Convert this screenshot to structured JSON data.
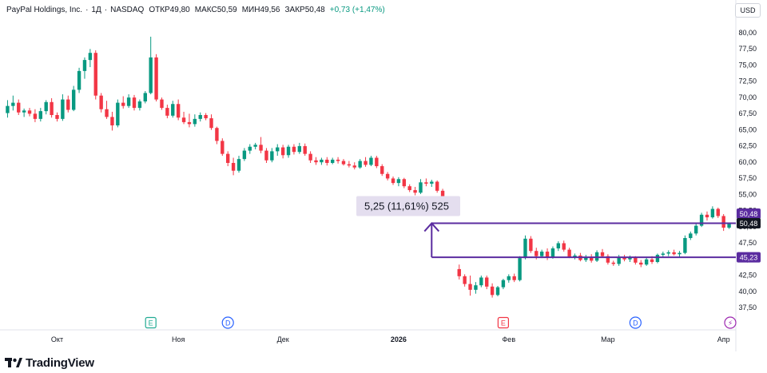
{
  "legend": {
    "name": "PayPal Holdings, Inc.",
    "interval": "1Д",
    "exchange": "NASDAQ",
    "open_label": "ОТКР",
    "open": "49,80",
    "high_label": "МАКС",
    "high": "50,59",
    "low_label": "МИН",
    "low": "49,56",
    "close_label": "ЗАКР",
    "close": "50,48",
    "change": "+0,73 (+1,47%)"
  },
  "currency": "USD",
  "brand": "TradingView",
  "colors": {
    "up": "#089981",
    "down": "#f23645",
    "drawing": "#5b2ca0",
    "measure_bg": "#e4deef",
    "price_label_bg": "#131722"
  },
  "chart_data": {
    "type": "candlestick",
    "title": "PayPal Holdings, Inc.",
    "y_axis": {
      "range": [
        35.0,
        82.5
      ],
      "ticks": [
        "37,50",
        "40,00",
        "42,50",
        "45,00",
        "47,50",
        "50,00",
        "52,50",
        "55,00",
        "57,50",
        "60,00",
        "62,50",
        "65,00",
        "67,50",
        "70,00",
        "72,50",
        "75,00",
        "77,50",
        "80,00"
      ],
      "tick_values": [
        37.5,
        40,
        42.5,
        45,
        47.5,
        50,
        52.5,
        55,
        57.5,
        60,
        62.5,
        65,
        67.5,
        70,
        72.5,
        75,
        77.5,
        80
      ]
    },
    "x_axis": {
      "labels": [
        "Окт",
        "Ноя",
        "Дек",
        "2026",
        "Фев",
        "Мар",
        "Апр"
      ],
      "label_index": [
        9,
        31,
        50,
        71,
        91,
        109,
        130
      ]
    },
    "grid": false,
    "candles": [
      [
        67.5,
        69.5,
        66.8,
        68.6
      ],
      [
        68.6,
        70.2,
        67.9,
        69.1
      ],
      [
        69.1,
        69.6,
        67.2,
        67.6
      ],
      [
        67.6,
        68.2,
        66.9,
        67.9
      ],
      [
        67.9,
        68.3,
        67.0,
        67.4
      ],
      [
        67.4,
        68.1,
        66.1,
        66.6
      ],
      [
        66.6,
        68.3,
        66.2,
        67.8
      ],
      [
        67.8,
        69.5,
        67.3,
        69.2
      ],
      [
        69.2,
        69.8,
        66.8,
        67.2
      ],
      [
        67.2,
        67.6,
        66.2,
        66.6
      ],
      [
        66.6,
        70.4,
        66.3,
        69.6
      ],
      [
        69.6,
        70.2,
        67.6,
        68.0
      ],
      [
        68.0,
        71.7,
        67.8,
        71.1
      ],
      [
        71.1,
        74.5,
        70.6,
        74.0
      ],
      [
        74.0,
        76.1,
        72.8,
        75.7
      ],
      [
        75.7,
        77.4,
        74.6,
        76.8
      ],
      [
        76.8,
        77.2,
        69.6,
        70.2
      ],
      [
        70.2,
        70.6,
        67.6,
        68.1
      ],
      [
        68.1,
        69.4,
        66.6,
        66.9
      ],
      [
        66.9,
        67.7,
        64.8,
        65.6
      ],
      [
        65.6,
        69.6,
        65.3,
        69.1
      ],
      [
        69.1,
        70.1,
        68.2,
        68.6
      ],
      [
        68.6,
        70.4,
        68.3,
        69.9
      ],
      [
        69.9,
        70.3,
        67.9,
        68.3
      ],
      [
        68.3,
        69.6,
        67.9,
        69.3
      ],
      [
        69.3,
        70.9,
        69.0,
        70.6
      ],
      [
        70.6,
        79.3,
        70.4,
        76.1
      ],
      [
        76.1,
        76.6,
        69.3,
        69.6
      ],
      [
        69.6,
        69.9,
        68.0,
        68.3
      ],
      [
        68.3,
        68.8,
        66.7,
        67.1
      ],
      [
        67.1,
        69.4,
        66.8,
        68.9
      ],
      [
        68.9,
        69.6,
        66.4,
        66.8
      ],
      [
        66.8,
        67.7,
        65.8,
        66.1
      ],
      [
        66.1,
        67.4,
        65.3,
        65.8
      ],
      [
        65.8,
        67.3,
        65.4,
        66.6
      ],
      [
        66.6,
        67.6,
        66.2,
        67.2
      ],
      [
        67.2,
        67.5,
        66.4,
        66.7
      ],
      [
        66.7,
        67.3,
        64.9,
        65.2
      ],
      [
        65.2,
        65.4,
        62.7,
        63.2
      ],
      [
        63.2,
        63.6,
        60.9,
        61.2
      ],
      [
        61.2,
        61.6,
        59.3,
        59.8
      ],
      [
        59.8,
        60.6,
        57.9,
        58.6
      ],
      [
        58.6,
        60.9,
        58.3,
        60.4
      ],
      [
        60.4,
        62.1,
        60.1,
        61.7
      ],
      [
        61.7,
        62.7,
        61.2,
        62.3
      ],
      [
        62.3,
        62.9,
        61.9,
        62.6
      ],
      [
        62.6,
        63.8,
        61.3,
        61.7
      ],
      [
        61.7,
        62.1,
        59.8,
        60.2
      ],
      [
        60.2,
        62.1,
        59.9,
        61.6
      ],
      [
        61.6,
        62.7,
        60.9,
        62.2
      ],
      [
        62.2,
        62.6,
        60.5,
        61.0
      ],
      [
        61.0,
        62.6,
        60.6,
        62.3
      ],
      [
        62.3,
        62.7,
        61.1,
        61.5
      ],
      [
        61.5,
        62.9,
        61.2,
        62.4
      ],
      [
        62.4,
        62.8,
        60.9,
        61.2
      ],
      [
        61.2,
        61.6,
        59.8,
        60.2
      ],
      [
        60.2,
        60.7,
        59.5,
        59.9
      ],
      [
        59.9,
        60.6,
        59.5,
        60.3
      ],
      [
        60.3,
        60.7,
        59.4,
        59.8
      ],
      [
        59.8,
        60.6,
        59.6,
        60.3
      ],
      [
        60.3,
        60.7,
        59.7,
        60.1
      ],
      [
        60.1,
        60.4,
        59.4,
        59.6
      ],
      [
        59.6,
        60.1,
        59.1,
        59.4
      ],
      [
        59.4,
        59.9,
        58.8,
        59.1
      ],
      [
        59.1,
        60.4,
        58.9,
        60.1
      ],
      [
        60.1,
        60.7,
        59.2,
        59.5
      ],
      [
        59.5,
        60.9,
        59.3,
        60.6
      ],
      [
        60.6,
        60.9,
        59.0,
        59.3
      ],
      [
        59.3,
        59.6,
        57.8,
        58.1
      ],
      [
        58.1,
        58.4,
        57.1,
        57.4
      ],
      [
        57.4,
        57.7,
        56.4,
        56.7
      ],
      [
        56.7,
        57.6,
        56.2,
        57.3
      ],
      [
        57.3,
        57.5,
        55.9,
        56.2
      ],
      [
        56.2,
        56.5,
        55.3,
        55.6
      ],
      [
        55.6,
        56.1,
        54.8,
        55.2
      ],
      [
        55.2,
        57.3,
        55.0,
        56.8
      ],
      [
        56.8,
        57.4,
        56.2,
        56.6
      ],
      [
        56.6,
        57.2,
        56.1,
        56.9
      ],
      [
        56.9,
        57.1,
        55.2,
        55.5
      ],
      [
        55.5,
        55.8,
        53.5,
        53.9
      ],
      [
        53.9,
        54.2,
        52.7,
        53.1
      ],
      [
        53.1,
        53.3,
        52.2,
        52.4
      ],
      [
        43.4,
        44.1,
        41.8,
        42.3
      ],
      [
        42.3,
        42.6,
        40.7,
        41.1
      ],
      [
        41.1,
        42.4,
        39.3,
        40.2
      ],
      [
        40.2,
        41.4,
        39.6,
        40.9
      ],
      [
        40.9,
        42.4,
        40.6,
        42.1
      ],
      [
        42.1,
        42.4,
        40.3,
        40.7
      ],
      [
        40.7,
        41.2,
        39.0,
        39.4
      ],
      [
        39.4,
        40.8,
        39.2,
        40.6
      ],
      [
        40.6,
        41.9,
        40.3,
        41.7
      ],
      [
        41.7,
        42.6,
        41.3,
        42.3
      ],
      [
        42.3,
        42.7,
        41.4,
        41.7
      ],
      [
        41.7,
        45.4,
        41.5,
        45.1
      ],
      [
        45.1,
        48.6,
        44.9,
        48.1
      ],
      [
        48.1,
        48.5,
        45.9,
        46.2
      ],
      [
        46.2,
        46.7,
        44.9,
        45.4
      ],
      [
        45.4,
        46.4,
        45.1,
        46.1
      ],
      [
        46.1,
        46.6,
        44.8,
        45.2
      ],
      [
        45.2,
        46.9,
        45.0,
        46.6
      ],
      [
        46.6,
        47.7,
        46.2,
        47.4
      ],
      [
        47.4,
        47.8,
        46.1,
        46.4
      ],
      [
        46.4,
        46.7,
        45.1,
        45.3
      ],
      [
        45.3,
        45.8,
        44.9,
        45.5
      ],
      [
        45.5,
        45.9,
        44.6,
        44.8
      ],
      [
        44.8,
        45.6,
        44.5,
        45.3
      ],
      [
        45.3,
        45.7,
        44.4,
        44.7
      ],
      [
        44.7,
        46.3,
        44.5,
        46.0
      ],
      [
        46.0,
        46.5,
        45.2,
        45.4
      ],
      [
        45.4,
        45.7,
        44.1,
        44.4
      ],
      [
        44.4,
        44.7,
        43.9,
        44.2
      ],
      [
        44.2,
        45.6,
        43.9,
        45.3
      ],
      [
        45.3,
        45.6,
        44.6,
        44.9
      ],
      [
        44.9,
        45.5,
        44.5,
        45.2
      ],
      [
        45.2,
        45.4,
        44.1,
        44.4
      ],
      [
        44.4,
        44.8,
        43.7,
        44.1
      ],
      [
        44.1,
        45.2,
        43.9,
        44.9
      ],
      [
        44.9,
        45.4,
        44.2,
        44.5
      ],
      [
        44.5,
        45.8,
        44.3,
        45.6
      ],
      [
        45.6,
        46.1,
        45.2,
        45.8
      ],
      [
        45.8,
        46.3,
        45.4,
        46.0
      ],
      [
        46.0,
        46.4,
        45.5,
        45.7
      ],
      [
        45.7,
        46.2,
        45.3,
        45.9
      ],
      [
        45.9,
        48.6,
        45.7,
        48.2
      ],
      [
        48.2,
        49.2,
        47.9,
        48.9
      ],
      [
        48.9,
        50.4,
        48.6,
        50.1
      ],
      [
        50.1,
        52.1,
        49.9,
        51.8
      ],
      [
        51.8,
        52.3,
        50.9,
        51.4
      ],
      [
        51.4,
        53.1,
        51.2,
        52.7
      ],
      [
        52.7,
        52.9,
        51.3,
        51.6
      ],
      [
        51.6,
        51.9,
        49.3,
        49.8
      ],
      [
        49.8,
        50.6,
        49.6,
        50.5
      ]
    ],
    "drawings": {
      "levels": [
        {
          "value": 50.48,
          "label": "50,48"
        },
        {
          "value": 45.23,
          "label": "45,23"
        }
      ],
      "last_price": {
        "value": 50.48,
        "label": "50,48"
      },
      "measure": {
        "text": "5,25 (11,61%) 525",
        "from": 45.23,
        "to": 50.48
      }
    },
    "events": [
      {
        "letter": "E",
        "index": 26,
        "kind": "earnings"
      },
      {
        "letter": "D",
        "index": 40,
        "kind": "dividend"
      },
      {
        "letter": "E",
        "index": 90,
        "kind": "earnings"
      },
      {
        "letter": "D",
        "index": 114,
        "kind": "dividend"
      },
      {
        "letter": "⚡",
        "index": 150,
        "kind": "split"
      }
    ]
  }
}
